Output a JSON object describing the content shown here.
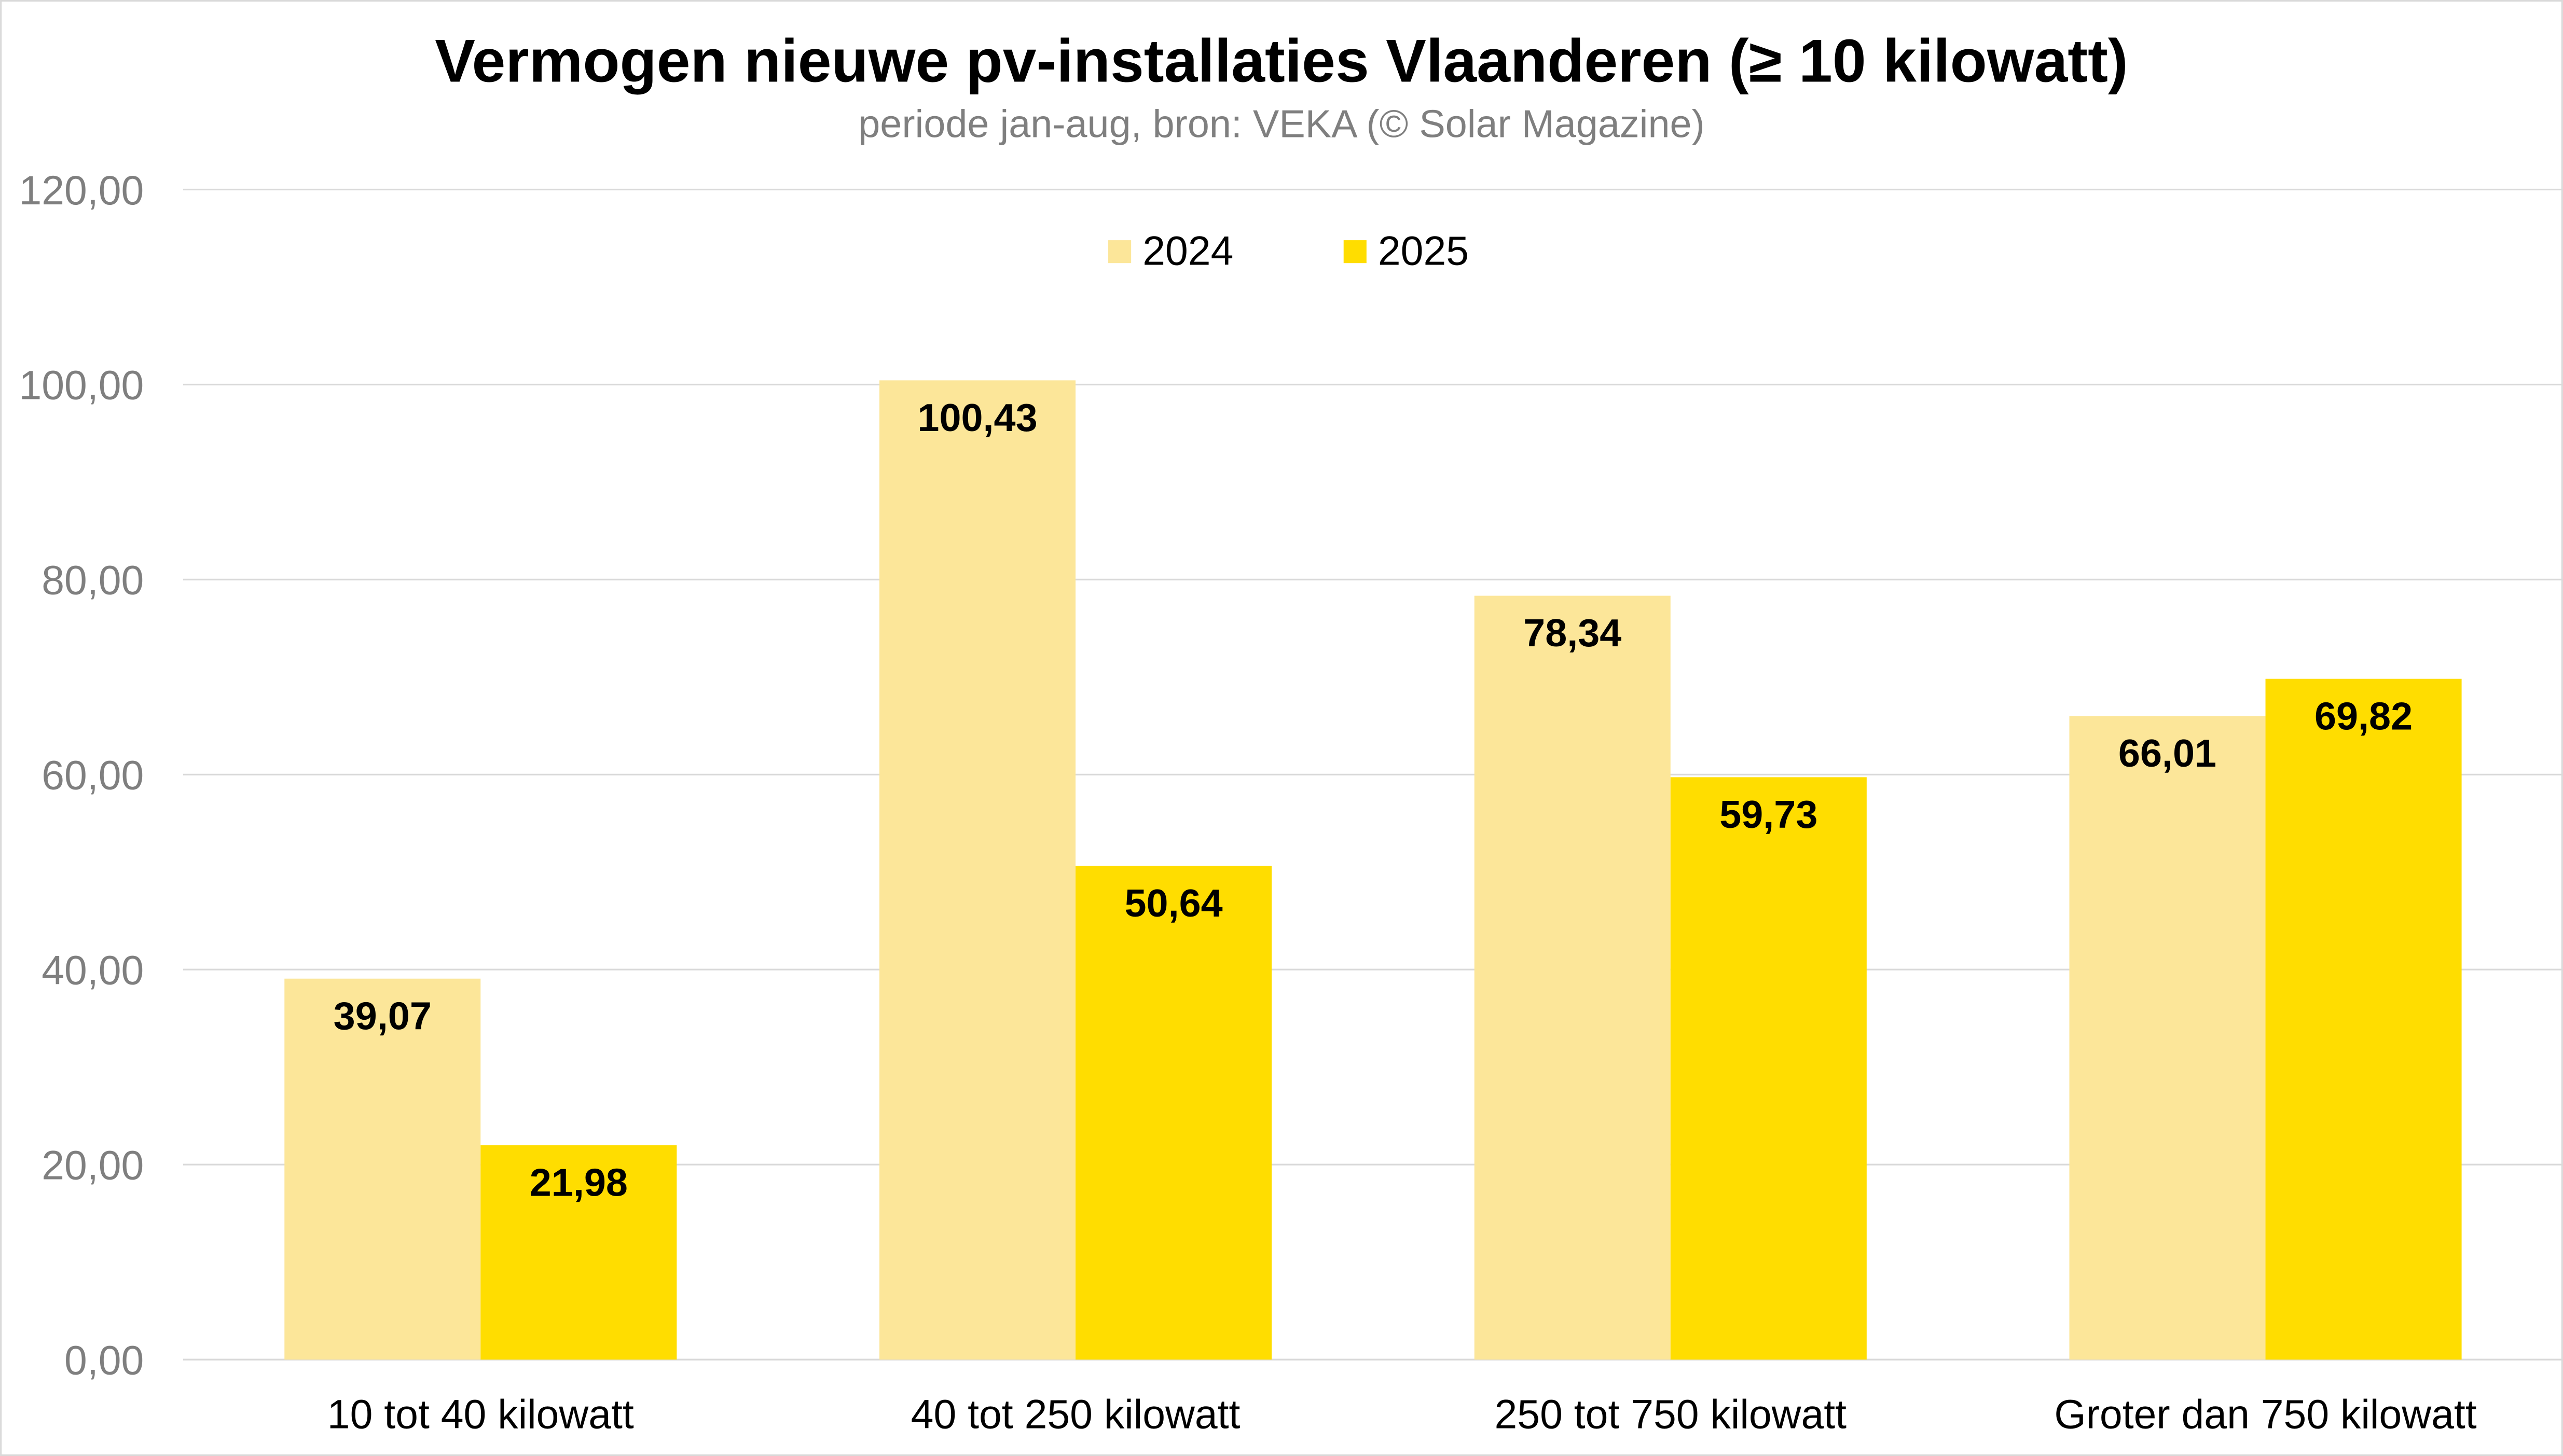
{
  "chart_data": {
    "type": "bar",
    "title": "Vermogen nieuwe pv-installaties Vlaanderen (≥ 10 kilowatt)",
    "subtitle": "periode jan-aug, bron: VEKA (© Solar Magazine)",
    "xlabel": "",
    "ylabel": "",
    "ylim": [
      0,
      120
    ],
    "yticks": [
      0,
      20,
      40,
      60,
      80,
      100,
      120
    ],
    "ytick_labels": [
      "0,00",
      "20,00",
      "40,00",
      "60,00",
      "80,00",
      "100,00",
      "120,00"
    ],
    "grid": true,
    "legend_position": "top-center",
    "categories": [
      "10 tot 40 kilowatt",
      "40 tot 250 kilowatt",
      "250 tot 750 kilowatt",
      "Groter dan 750 kilowatt"
    ],
    "series": [
      {
        "name": "2024",
        "color": "#FCE699",
        "values": [
          39.07,
          100.43,
          78.34,
          66.01
        ],
        "labels": [
          "39,07",
          "100,43",
          "78,34",
          "66,01"
        ]
      },
      {
        "name": "2025",
        "color": "#FFDD00",
        "values": [
          21.98,
          50.64,
          59.73,
          69.82
        ],
        "labels": [
          "21,98",
          "50,64",
          "59,73",
          "69,82"
        ]
      }
    ]
  }
}
